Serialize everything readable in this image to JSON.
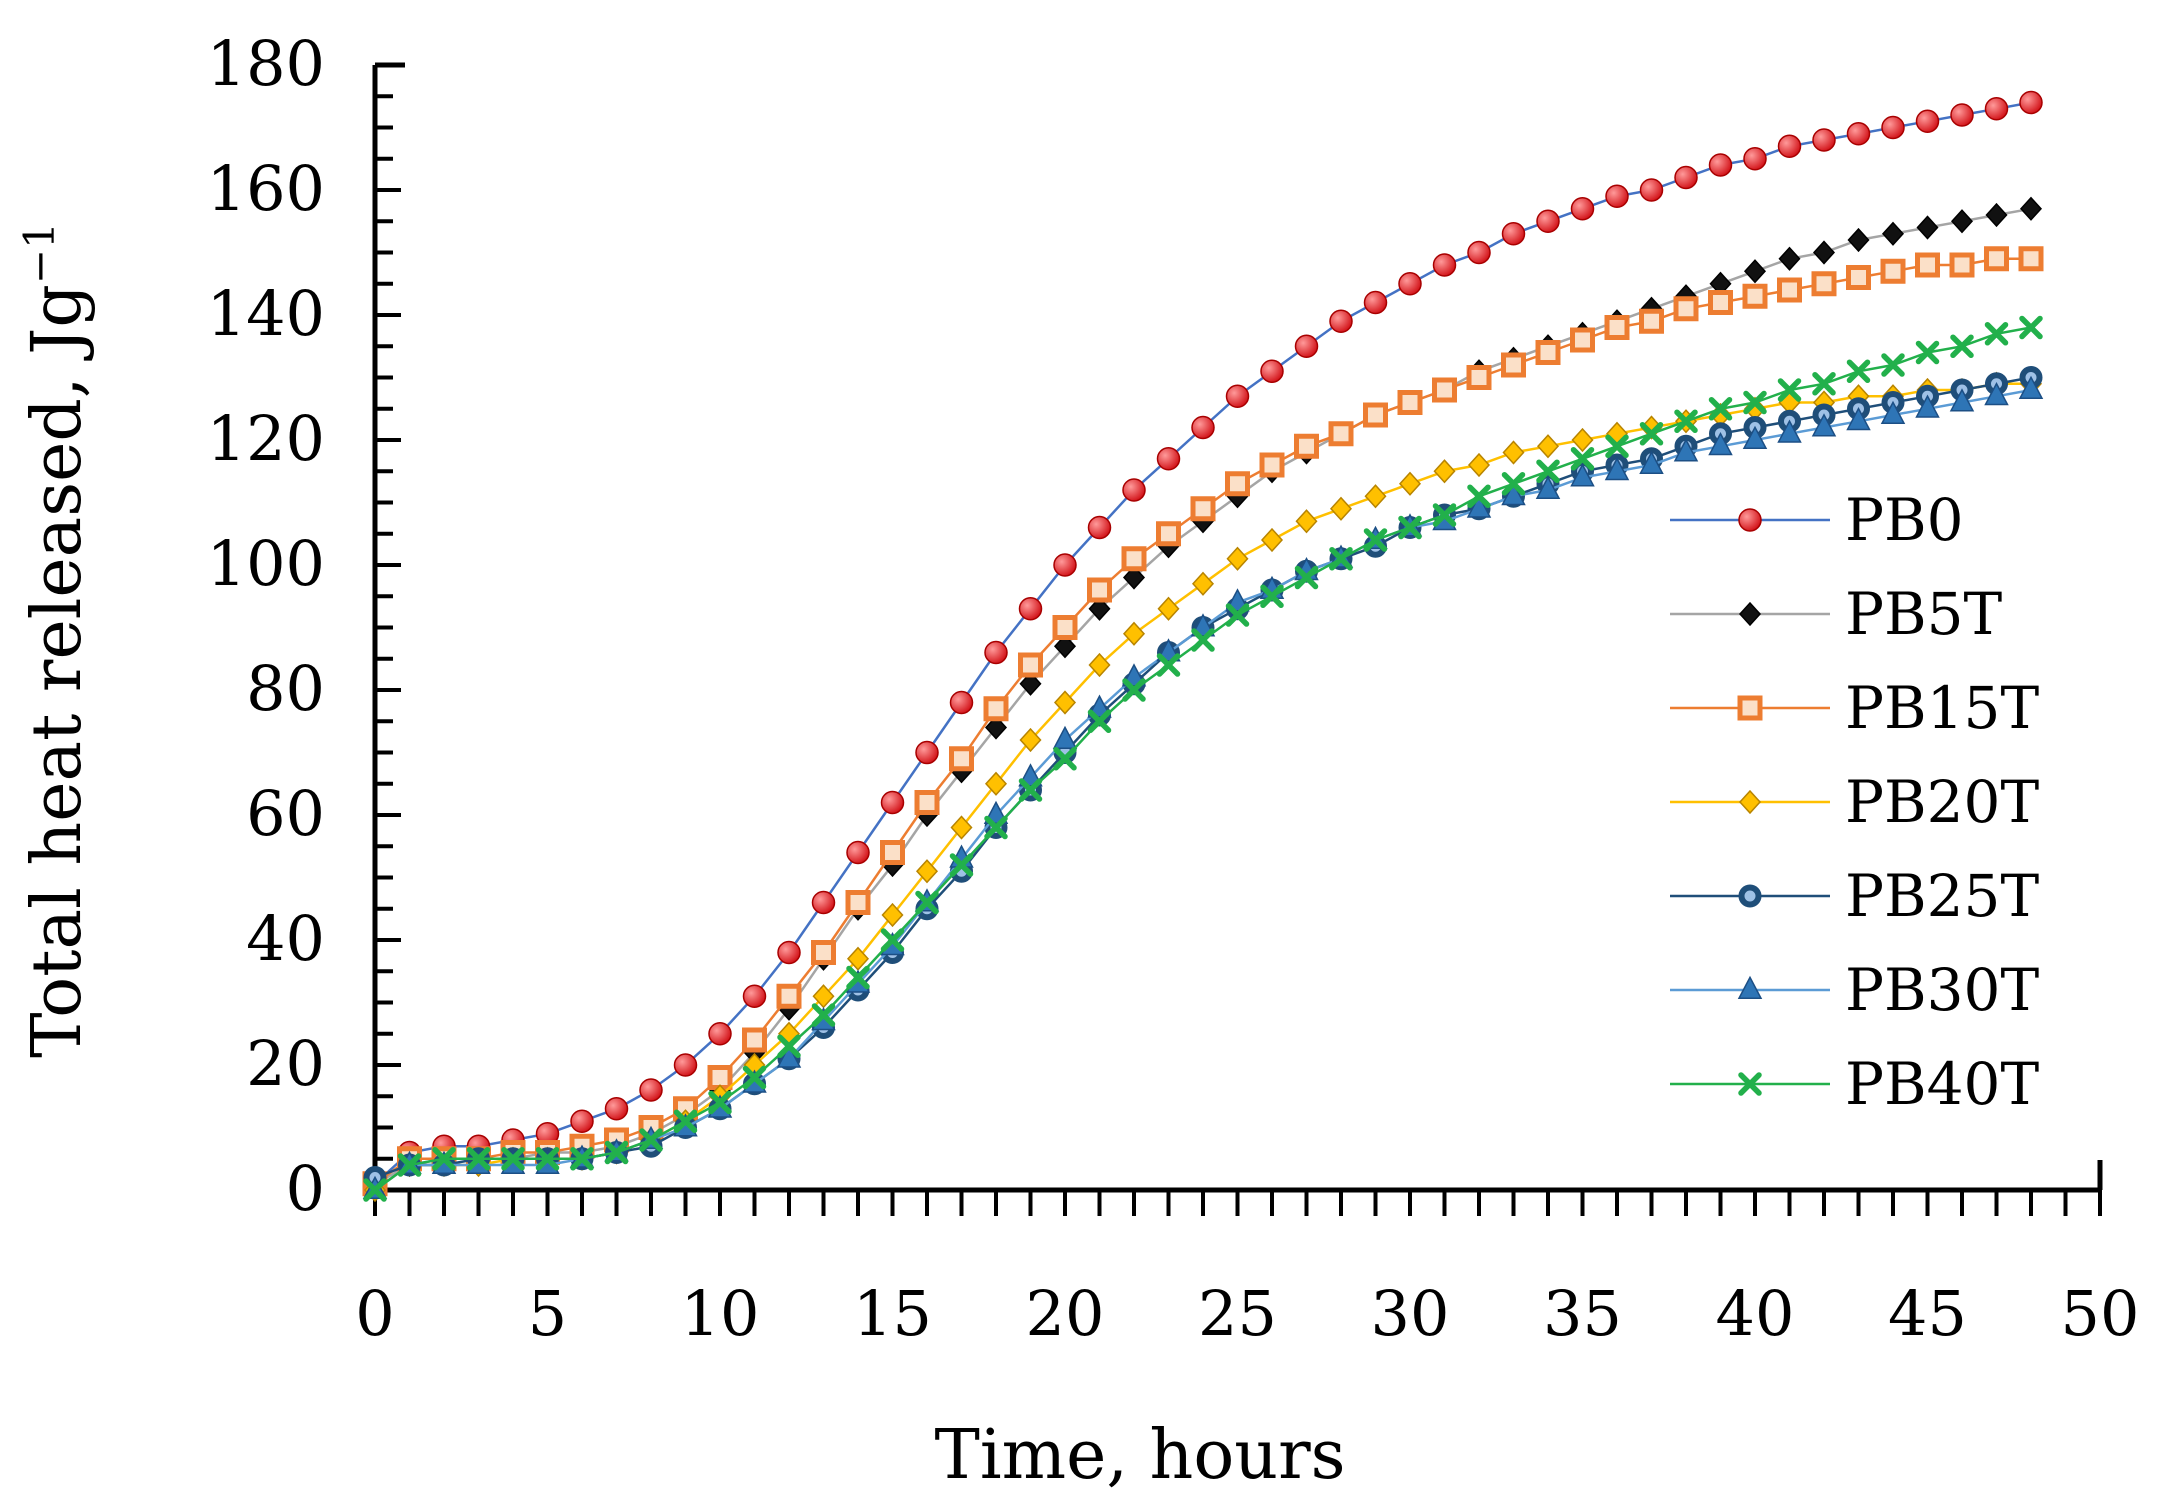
{
  "chart_data": {
    "type": "line",
    "title": "",
    "xlabel": "Time, hours",
    "ylabel": "Total heat released, Jg",
    "ylabel_superscript": "−1",
    "xlim": [
      0,
      50
    ],
    "ylim": [
      0,
      180
    ],
    "x_ticks": [
      0,
      5,
      10,
      15,
      20,
      25,
      30,
      35,
      40,
      45,
      50
    ],
    "y_ticks": [
      0,
      20,
      40,
      60,
      80,
      100,
      120,
      140,
      160,
      180
    ],
    "grid": false,
    "legend_position": "right",
    "x": [
      0,
      1,
      2,
      3,
      4,
      5,
      6,
      7,
      8,
      9,
      10,
      11,
      12,
      13,
      14,
      15,
      16,
      17,
      18,
      19,
      20,
      21,
      22,
      23,
      24,
      25,
      26,
      27,
      28,
      29,
      30,
      31,
      32,
      33,
      34,
      35,
      36,
      37,
      38,
      39,
      40,
      41,
      42,
      43,
      44,
      45,
      46,
      47,
      48
    ],
    "series": [
      {
        "name": "PB0",
        "marker": "circle",
        "color": "#e8151b",
        "line_color": "#4472c4",
        "values": [
          1,
          6,
          7,
          7,
          8,
          9,
          11,
          13,
          16,
          20,
          25,
          31,
          38,
          46,
          54,
          62,
          70,
          78,
          86,
          93,
          100,
          106,
          112,
          117,
          122,
          127,
          131,
          135,
          139,
          142,
          145,
          148,
          150,
          153,
          155,
          157,
          159,
          160,
          162,
          164,
          165,
          167,
          168,
          169,
          170,
          171,
          172,
          173,
          174
        ]
      },
      {
        "name": "PB5T",
        "marker": "diamond",
        "color": "#000000",
        "line_color": "#a5a5a5",
        "values": [
          1,
          4,
          5,
          5,
          5,
          6,
          6,
          7,
          9,
          12,
          16,
          22,
          29,
          37,
          45,
          52,
          60,
          67,
          74,
          81,
          87,
          93,
          98,
          103,
          107,
          111,
          115,
          118,
          121,
          124,
          126,
          128,
          131,
          133,
          135,
          137,
          139,
          141,
          143,
          145,
          147,
          149,
          150,
          152,
          153,
          154,
          155,
          156,
          157
        ]
      },
      {
        "name": "PB15T",
        "marker": "square",
        "color": "#ed7d31",
        "line_color": "#ed7d31",
        "values": [
          1,
          5,
          5,
          5,
          6,
          6,
          7,
          8,
          10,
          13,
          18,
          24,
          31,
          38,
          46,
          54,
          62,
          69,
          77,
          84,
          90,
          96,
          101,
          105,
          109,
          113,
          116,
          119,
          121,
          124,
          126,
          128,
          130,
          132,
          134,
          136,
          138,
          139,
          141,
          142,
          143,
          144,
          145,
          146,
          147,
          148,
          148,
          149,
          149
        ]
      },
      {
        "name": "PB20T",
        "marker": "diamond",
        "color": "#ffc000",
        "line_color": "#ffc000",
        "values": [
          0,
          4,
          4,
          4,
          5,
          5,
          5,
          6,
          8,
          11,
          15,
          20,
          25,
          31,
          37,
          44,
          51,
          58,
          65,
          72,
          78,
          84,
          89,
          93,
          97,
          101,
          104,
          107,
          109,
          111,
          113,
          115,
          116,
          118,
          119,
          120,
          121,
          122,
          123,
          124,
          125,
          126,
          126,
          127,
          127,
          128,
          128,
          129,
          129
        ]
      },
      {
        "name": "PB25T",
        "marker": "circle-open",
        "color": "#1f4e79",
        "line_color": "#1f4e79",
        "values": [
          2,
          4,
          4,
          5,
          5,
          5,
          5,
          6,
          7,
          10,
          13,
          17,
          21,
          26,
          32,
          38,
          45,
          51,
          58,
          64,
          70,
          76,
          81,
          86,
          90,
          93,
          96,
          99,
          101,
          103,
          106,
          108,
          109,
          111,
          113,
          115,
          116,
          117,
          119,
          121,
          122,
          123,
          124,
          125,
          126,
          127,
          128,
          129,
          130
        ]
      },
      {
        "name": "PB30T",
        "marker": "triangle",
        "color": "#2e75b6",
        "line_color": "#5b9bd5",
        "values": [
          0,
          4,
          4,
          4,
          4,
          4,
          5,
          6,
          8,
          10,
          13,
          17,
          21,
          27,
          33,
          39,
          46,
          53,
          60,
          66,
          72,
          77,
          82,
          86,
          90,
          94,
          96,
          99,
          101,
          104,
          106,
          107,
          109,
          111,
          112,
          114,
          115,
          116,
          118,
          119,
          120,
          121,
          122,
          123,
          124,
          125,
          126,
          127,
          128
        ]
      },
      {
        "name": "PB40T",
        "marker": "x",
        "color": "#22b04b",
        "line_color": "#22b04b",
        "values": [
          0,
          4,
          5,
          5,
          5,
          5,
          5,
          6,
          8,
          11,
          14,
          18,
          23,
          28,
          34,
          40,
          46,
          52,
          58,
          64,
          69,
          75,
          80,
          84,
          88,
          92,
          95,
          98,
          101,
          104,
          106,
          108,
          111,
          113,
          115,
          117,
          119,
          121,
          123,
          125,
          126,
          128,
          129,
          131,
          132,
          134,
          135,
          137,
          138
        ]
      }
    ]
  }
}
